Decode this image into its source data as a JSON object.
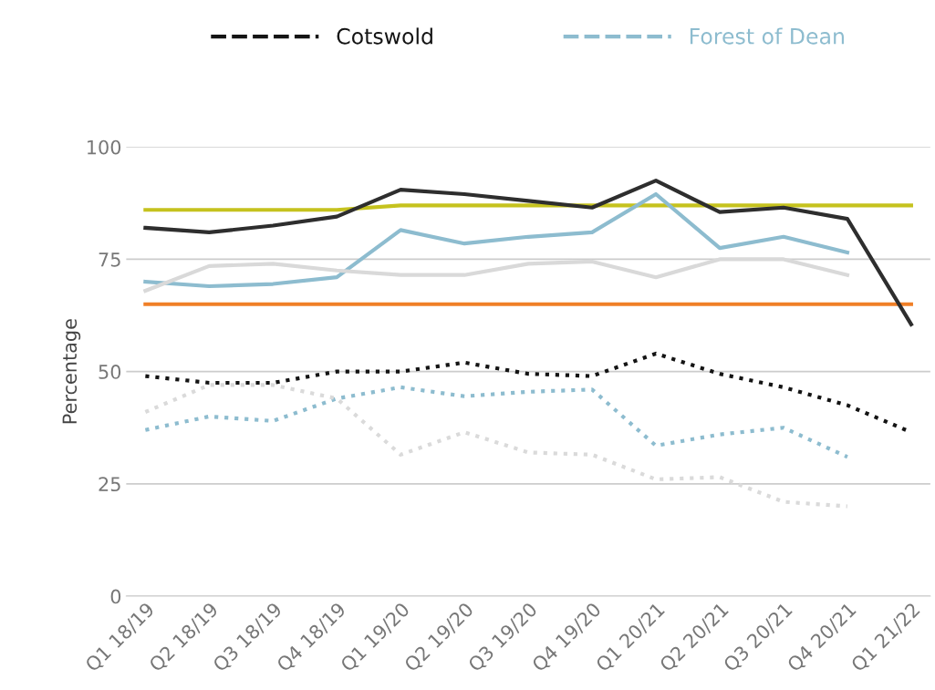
{
  "chart_data": {
    "type": "line",
    "ylabel": "Percentage",
    "categories": [
      "Q1 18/19",
      "Q2 18/19",
      "Q3 18/19",
      "Q4 18/19",
      "Q1 19/20",
      "Q2 19/20",
      "Q3 19/20",
      "Q4 19/20",
      "Q1 20/21",
      "Q2 20/21",
      "Q3 20/21",
      "Q4 20/21",
      "Q1 21/22"
    ],
    "series": [
      {
        "color": "#c5c21e",
        "line_style": "solid",
        "values": [
          86,
          86,
          86,
          86,
          87,
          87,
          87,
          87,
          87,
          87,
          87,
          87,
          87
        ]
      },
      {
        "color": "#f07f27",
        "line_style": "solid",
        "values": [
          65,
          65,
          65,
          65,
          65,
          65,
          65,
          65,
          65,
          65,
          65,
          65,
          65
        ]
      },
      {
        "color": "#2e2e2e",
        "line_style": "solid",
        "values": [
          82,
          81,
          82.5,
          84.5,
          90.5,
          89.5,
          88,
          86.5,
          92.5,
          85.5,
          86.5,
          84,
          60.5
        ]
      },
      {
        "color": "#8dbccf",
        "line_style": "solid",
        "values": [
          70,
          69,
          69.5,
          71,
          81.5,
          78.5,
          80,
          81,
          89.5,
          77.5,
          80,
          76.5,
          null
        ]
      },
      {
        "color": "#d9d9d9",
        "line_style": "solid",
        "values": [
          68,
          73.5,
          74,
          72.5,
          71.5,
          71.5,
          74,
          74.5,
          71,
          75,
          75,
          71.5,
          null
        ]
      },
      {
        "name": "Cotswold",
        "color": "#141414",
        "line_style": "dotted",
        "values": [
          49,
          47.5,
          47.5,
          50,
          50,
          52,
          49.5,
          49,
          54,
          49.5,
          46.5,
          42.5,
          36.5
        ]
      },
      {
        "name": "Forest of Dean",
        "color": "#8dbccf",
        "line_style": "dotted",
        "values": [
          37,
          40,
          39,
          44,
          46.5,
          44.5,
          45.5,
          46,
          33.5,
          36,
          37.5,
          31,
          null
        ]
      },
      {
        "color": "#dadada",
        "line_style": "dotted",
        "values": [
          41,
          47,
          47,
          44,
          31.5,
          36.5,
          32,
          31.5,
          26,
          26.5,
          21,
          20,
          null
        ]
      }
    ],
    "ylim": [
      0,
      100
    ],
    "yticks": [
      0,
      25,
      50,
      75,
      100
    ],
    "grid": "y",
    "legend": "top",
    "marker": "none"
  }
}
